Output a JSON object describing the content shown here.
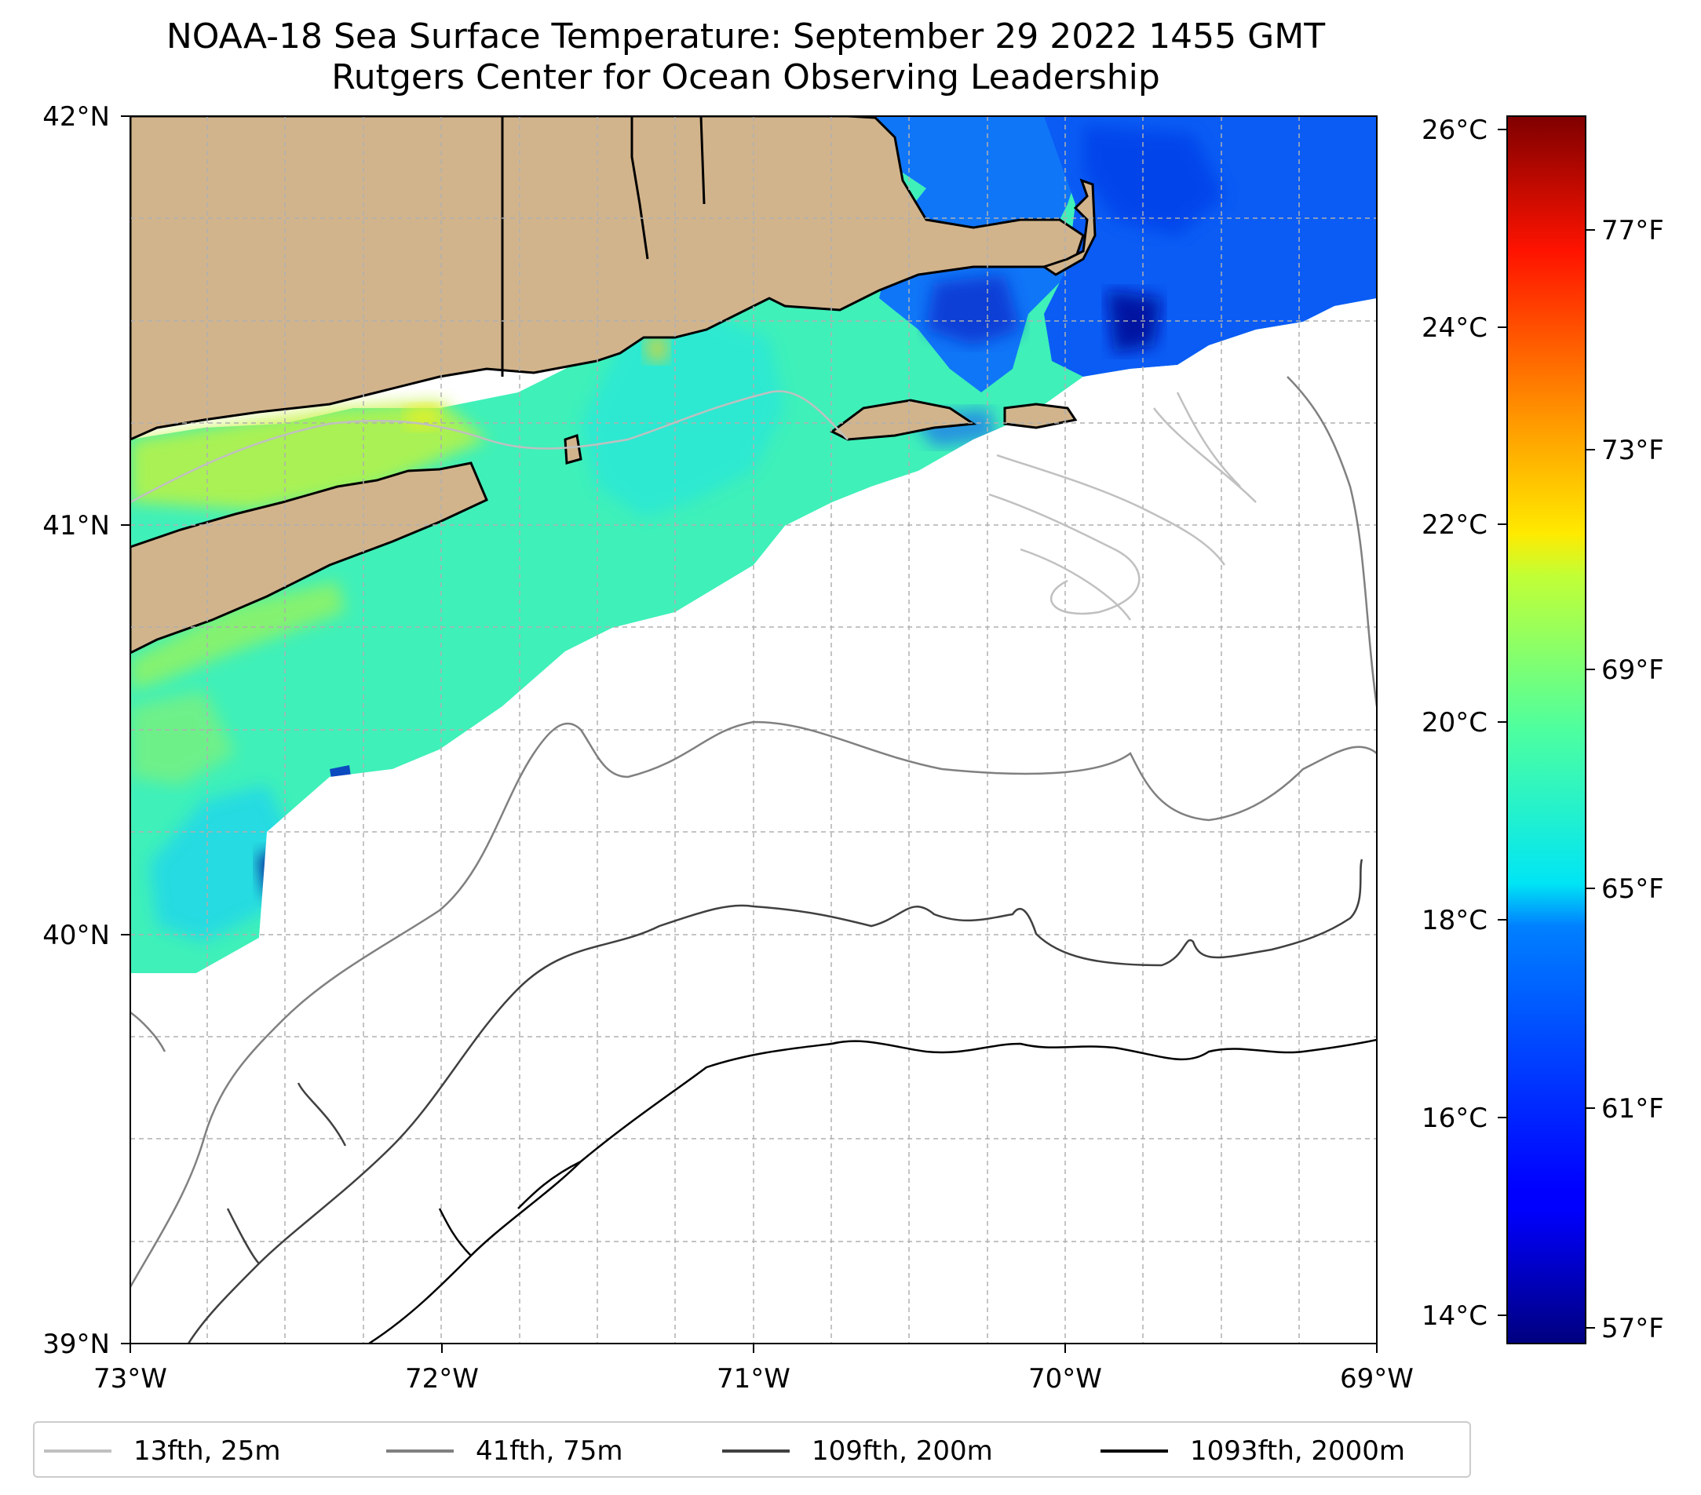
{
  "title": {
    "line1": "NOAA-18 Sea Surface Temperature: September 29 2022 1455 GMT",
    "line2": "Rutgers Center for Ocean Observing Leadership"
  },
  "map": {
    "lon_range": [
      -73,
      -69
    ],
    "lat_range": [
      39,
      42
    ],
    "x_ticks": [
      {
        "value": -73,
        "label": "73°W"
      },
      {
        "value": -72,
        "label": "72°W"
      },
      {
        "value": -71,
        "label": "71°W"
      },
      {
        "value": -70,
        "label": "70°W"
      },
      {
        "value": -69,
        "label": "69°W"
      }
    ],
    "y_ticks": [
      {
        "value": 42,
        "label": "42°N"
      },
      {
        "value": 41,
        "label": "41°N"
      },
      {
        "value": 40,
        "label": "40°N"
      },
      {
        "value": 39,
        "label": "39°N"
      }
    ],
    "gridlines": "dashed",
    "land_color": "#D2B48C"
  },
  "colorbar": {
    "colormap": "jet",
    "celsius_range": [
      13.7,
      26.4
    ],
    "celsius_ticks": [
      {
        "value": 26,
        "label": "26°C"
      },
      {
        "value": 24,
        "label": "24°C"
      },
      {
        "value": 22,
        "label": "22°C"
      },
      {
        "value": 20,
        "label": "20°C"
      },
      {
        "value": 18,
        "label": "18°C"
      },
      {
        "value": 16,
        "label": "16°C"
      },
      {
        "value": 14,
        "label": "14°C"
      }
    ],
    "fahrenheit_ticks": [
      {
        "value": 77,
        "label": "77°F"
      },
      {
        "value": 73,
        "label": "73°F"
      },
      {
        "value": 69,
        "label": "69°F"
      },
      {
        "value": 65,
        "label": "65°F"
      },
      {
        "value": 61,
        "label": "61°F"
      },
      {
        "value": 57,
        "label": "57°F"
      }
    ]
  },
  "legend": [
    {
      "label": "13fth, 25m",
      "color": "#c0c0c0"
    },
    {
      "label": "41fth, 75m",
      "color": "#808080"
    },
    {
      "label": "109fth, 200m",
      "color": "#404040"
    },
    {
      "label": "1093fth, 2000m",
      "color": "#000000"
    }
  ]
}
